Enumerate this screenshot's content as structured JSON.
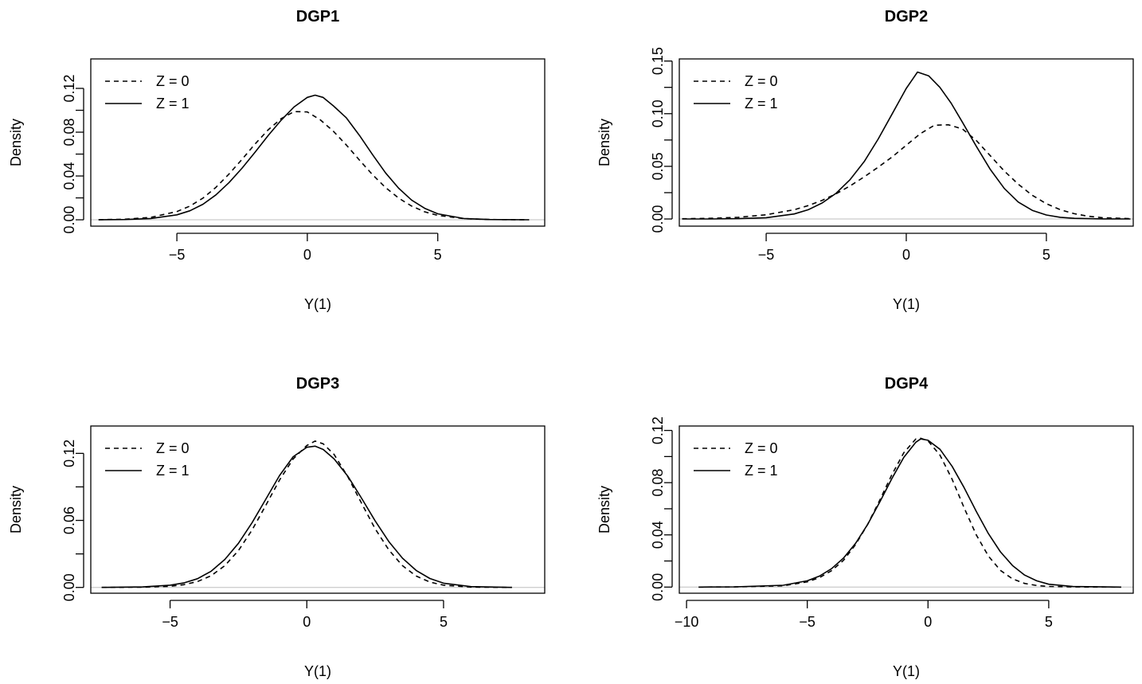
{
  "chart_data": [
    {
      "type": "line",
      "title": "DGP1",
      "xlabel": "Y(1)",
      "ylabel": "Density",
      "xlim": [
        -8.3,
        9.1
      ],
      "ylim": [
        -0.0058,
        0.1469
      ],
      "xticks": [
        -5,
        0,
        5
      ],
      "xtick_labels": [
        "−5",
        "0",
        "5"
      ],
      "yticks": [
        0.0,
        0.04,
        0.08,
        0.12
      ],
      "ytick_labels": [
        "0.00",
        "0.04",
        "0.08",
        "0.12"
      ],
      "yminor": [
        0.02,
        0.06,
        0.1
      ],
      "series": [
        {
          "name": "Z = 0",
          "dash": "dashed",
          "x": [
            -8,
            -7,
            -6,
            -5,
            -4.5,
            -4,
            -3.5,
            -3,
            -2.5,
            -2,
            -1.5,
            -1,
            -0.5,
            0,
            0.5,
            1,
            1.5,
            2,
            2.5,
            3,
            3.5,
            4,
            4.5,
            5,
            6,
            7,
            8.5
          ],
          "y": [
            0.0001,
            0.0005,
            0.0022,
            0.0075,
            0.0125,
            0.0198,
            0.0297,
            0.0418,
            0.0553,
            0.0693,
            0.0822,
            0.0924,
            0.0988,
            0.0985,
            0.0912,
            0.0808,
            0.0682,
            0.0545,
            0.0412,
            0.0294,
            0.0198,
            0.0125,
            0.0073,
            0.004,
            0.001,
            0.0002,
            0.0
          ]
        },
        {
          "name": "Z = 1",
          "dash": "solid",
          "x": [
            -8,
            -7,
            -6,
            -5,
            -4.5,
            -4,
            -3.5,
            -3,
            -2.5,
            -2,
            -1.5,
            -1,
            -0.5,
            0,
            0.3,
            0.6,
            1,
            1.5,
            2,
            2.5,
            3,
            3.5,
            4,
            4.5,
            5,
            6,
            7,
            8.5
          ],
          "y": [
            0.0,
            0.0002,
            0.0012,
            0.0045,
            0.0082,
            0.0142,
            0.0228,
            0.034,
            0.0472,
            0.0618,
            0.077,
            0.091,
            0.1032,
            0.1118,
            0.1138,
            0.1118,
            0.104,
            0.093,
            0.077,
            0.0595,
            0.0428,
            0.0288,
            0.018,
            0.0105,
            0.0055,
            0.0012,
            0.0002,
            0.0
          ]
        }
      ],
      "legend": "top-left"
    },
    {
      "type": "line",
      "title": "DGP2",
      "xlabel": "Y(1)",
      "ylabel": "Density",
      "xlim": [
        -8.1,
        8.1
      ],
      "ylim": [
        -0.0068,
        0.152
      ],
      "xticks": [
        -5,
        0,
        5
      ],
      "xtick_labels": [
        "−5",
        "0",
        "5"
      ],
      "yticks": [
        0.0,
        0.05,
        0.1,
        0.15
      ],
      "ytick_labels": [
        "0.00",
        "0.05",
        "0.10",
        "0.15"
      ],
      "yminor": [
        0.025,
        0.075,
        0.125
      ],
      "series": [
        {
          "name": "Z = 0",
          "dash": "dashed",
          "x": [
            -8,
            -7,
            -6,
            -5,
            -4,
            -3.5,
            -3,
            -2.5,
            -2,
            -1.5,
            -1,
            -0.5,
            0,
            0.5,
            1,
            1.5,
            2,
            2.5,
            3,
            3.5,
            4,
            4.5,
            5,
            5.5,
            6,
            6.5,
            7,
            8
          ],
          "y": [
            0.0002,
            0.0006,
            0.0016,
            0.004,
            0.0088,
            0.0127,
            0.0177,
            0.024,
            0.0315,
            0.04,
            0.0492,
            0.059,
            0.07,
            0.081,
            0.089,
            0.0895,
            0.0855,
            0.0745,
            0.06,
            0.0455,
            0.033,
            0.0225,
            0.0145,
            0.0088,
            0.005,
            0.0026,
            0.0012,
            0.0003
          ]
        },
        {
          "name": "Z = 1",
          "dash": "solid",
          "x": [
            -8,
            -7,
            -6,
            -5,
            -4,
            -3.5,
            -3,
            -2.5,
            -2,
            -1.5,
            -1,
            -0.5,
            0,
            0.4,
            0.8,
            1.2,
            1.6,
            2,
            2.5,
            3,
            3.5,
            4,
            4.5,
            5,
            5.5,
            6,
            7,
            8
          ],
          "y": [
            0.0,
            0.0,
            0.0003,
            0.0012,
            0.0048,
            0.0088,
            0.0152,
            0.0245,
            0.0375,
            0.0545,
            0.076,
            0.1,
            0.124,
            0.1395,
            0.136,
            0.125,
            0.11,
            0.092,
            0.069,
            0.047,
            0.029,
            0.016,
            0.0082,
            0.0038,
            0.0016,
            0.0006,
            0.0001,
            0.0
          ]
        }
      ],
      "legend": "top-left"
    },
    {
      "type": "line",
      "title": "DGP3",
      "xlabel": "Y(1)",
      "ylabel": "Density",
      "xlim": [
        -7.9,
        8.7
      ],
      "ylim": [
        -0.0052,
        0.1445
      ],
      "xticks": [
        -5,
        0,
        5
      ],
      "xtick_labels": [
        "−5",
        "0",
        "5"
      ],
      "yticks": [
        0.0,
        0.06,
        0.12
      ],
      "ytick_labels": [
        "0.00",
        "0.06",
        "0.12"
      ],
      "yminor": [
        0.03,
        0.09
      ],
      "series": [
        {
          "name": "Z = 0",
          "dash": "dashed",
          "x": [
            -7.5,
            -6,
            -5,
            -4.5,
            -4,
            -3.5,
            -3,
            -2.5,
            -2,
            -1.5,
            -1,
            -0.5,
            0,
            0.3,
            0.6,
            1,
            1.5,
            2,
            2.5,
            3,
            3.5,
            4,
            4.5,
            5,
            6,
            7.5
          ],
          "y": [
            0.0,
            0.0002,
            0.001,
            0.0024,
            0.0052,
            0.0105,
            0.0195,
            0.033,
            0.0515,
            0.0735,
            0.096,
            0.115,
            0.127,
            0.131,
            0.1285,
            0.119,
            0.099,
            0.0755,
            0.0525,
            0.0335,
            0.0195,
            0.0102,
            0.0048,
            0.002,
            0.0003,
            0.0
          ]
        },
        {
          "name": "Z = 1",
          "dash": "solid",
          "x": [
            -7.5,
            -6,
            -5,
            -4.5,
            -4,
            -3.5,
            -3,
            -2.5,
            -2,
            -1.5,
            -1,
            -0.5,
            0,
            0.3,
            0.6,
            1,
            1.5,
            2,
            2.5,
            3,
            3.5,
            4,
            4.5,
            5,
            6,
            7.5
          ],
          "y": [
            0.0,
            0.0004,
            0.002,
            0.004,
            0.0078,
            0.0145,
            0.025,
            0.0395,
            0.058,
            0.079,
            0.1,
            0.117,
            0.1255,
            0.1265,
            0.1235,
            0.115,
            0.0995,
            0.08,
            0.0595,
            0.041,
            0.0262,
            0.0152,
            0.008,
            0.0038,
            0.0007,
            0.0
          ]
        }
      ],
      "legend": "top-left"
    },
    {
      "type": "line",
      "title": "DGP4",
      "xlabel": "Y(1)",
      "ylabel": "Density",
      "xlim": [
        -10.3,
        8.5
      ],
      "ylim": [
        -0.0047,
        0.1234
      ],
      "xticks": [
        -10,
        -5,
        0,
        5
      ],
      "xtick_labels": [
        "−10",
        "−5",
        "0",
        "5"
      ],
      "yticks": [
        0.0,
        0.04,
        0.08,
        0.12
      ],
      "ytick_labels": [
        "0.00",
        "0.04",
        "0.08",
        "0.12"
      ],
      "yminor": [
        0.02,
        0.06,
        0.1
      ],
      "series": [
        {
          "name": "Z = 0",
          "dash": "dashed",
          "x": [
            -9.5,
            -8,
            -6,
            -5,
            -4.5,
            -4,
            -3.5,
            -3,
            -2.5,
            -2,
            -1.5,
            -1,
            -0.5,
            -0.3,
            0,
            0.5,
            1,
            1.5,
            2,
            2.5,
            3,
            3.5,
            4,
            4.5,
            5,
            6,
            8
          ],
          "y": [
            0.0,
            0.0001,
            0.001,
            0.004,
            0.0072,
            0.0125,
            0.0205,
            0.0325,
            0.048,
            0.0665,
            0.086,
            0.103,
            0.1135,
            0.114,
            0.112,
            0.101,
            0.0825,
            0.0605,
            0.04,
            0.0238,
            0.0128,
            0.0063,
            0.0028,
            0.0012,
            0.0005,
            0.0001,
            0.0
          ]
        },
        {
          "name": "Z = 1",
          "dash": "solid",
          "x": [
            -9.5,
            -8,
            -6,
            -5,
            -4.5,
            -4,
            -3.5,
            -3,
            -2.5,
            -2,
            -1.5,
            -1,
            -0.5,
            -0.3,
            0,
            0.5,
            1,
            1.5,
            2,
            2.5,
            3,
            3.5,
            4,
            4.5,
            5,
            6,
            8
          ],
          "y": [
            0.0,
            0.0002,
            0.0014,
            0.0048,
            0.0084,
            0.014,
            0.0222,
            0.0335,
            0.048,
            0.065,
            0.083,
            0.0995,
            0.111,
            0.1135,
            0.1125,
            0.1055,
            0.0925,
            0.076,
            0.058,
            0.041,
            0.027,
            0.0165,
            0.0092,
            0.0048,
            0.0022,
            0.0004,
            0.0
          ]
        }
      ],
      "legend": "top-left"
    }
  ]
}
